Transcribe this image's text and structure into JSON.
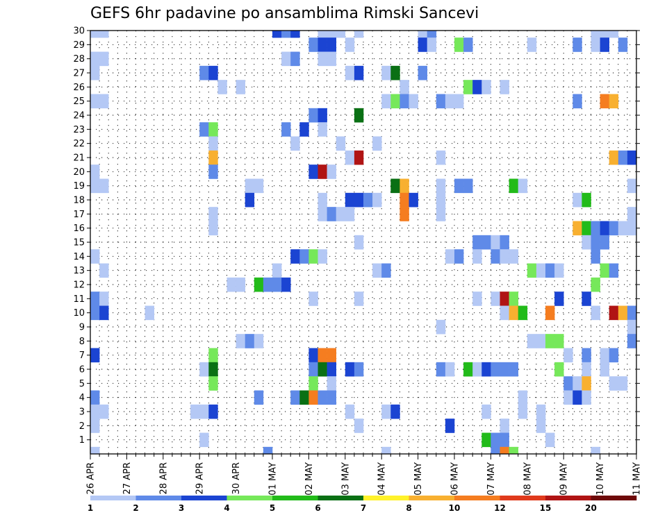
{
  "chart_data": {
    "type": "heatmap",
    "title": "GEFS 6hr padavine po ansamblima Rimski Sancevi",
    "y_ticks": [
      "1",
      "2",
      "3",
      "4",
      "5",
      "6",
      "7",
      "8",
      "9",
      "10",
      "11",
      "12",
      "13",
      "14",
      "15",
      "16",
      "17",
      "18",
      "19",
      "20",
      "21",
      "22",
      "23",
      "24",
      "25",
      "26",
      "27",
      "28",
      "29",
      "30"
    ],
    "ylim": [
      0,
      30
    ],
    "x_ticks": [
      "26 APR",
      "27 APR",
      "28 APR",
      "29 APR",
      "30 APR",
      "01 MAY",
      "02 MAY",
      "03 MAY",
      "04 MAY",
      "05 MAY",
      "06 MAY",
      "07 MAY",
      "08 MAY",
      "09 MAY",
      "10 MAY",
      "11 MAY"
    ],
    "x_steps_per_day": 4,
    "x_total_steps": 60,
    "grid": true,
    "colorbar": {
      "labels": [
        "1",
        "2",
        "3",
        "4",
        "5",
        "6",
        "7",
        "8",
        "10",
        "12",
        "15",
        "20"
      ],
      "colors": [
        "#b4c8f5",
        "#5f8ae8",
        "#1b44d2",
        "#76e85a",
        "#22bb1a",
        "#0a7014",
        "#fff22a",
        "#f8b030",
        "#f57d20",
        "#e03a1c",
        "#b01414",
        "#6e0a0a"
      ]
    },
    "cells": [
      [
        1,
        30,
        1
      ],
      [
        2,
        30,
        1
      ],
      [
        21,
        30,
        3
      ],
      [
        22,
        30,
        2
      ],
      [
        23,
        30,
        3
      ],
      [
        26,
        30,
        1
      ],
      [
        27,
        30,
        1
      ],
      [
        28,
        30,
        1
      ],
      [
        30,
        30,
        1
      ],
      [
        37,
        30,
        1
      ],
      [
        38,
        30,
        2
      ],
      [
        56,
        30,
        1
      ],
      [
        57,
        30,
        1
      ],
      [
        58,
        30,
        1
      ],
      [
        25,
        29,
        2
      ],
      [
        26,
        29,
        3
      ],
      [
        27,
        29,
        3
      ],
      [
        29,
        29,
        1
      ],
      [
        37,
        29,
        3
      ],
      [
        38,
        29,
        1
      ],
      [
        41,
        29,
        4
      ],
      [
        42,
        29,
        2
      ],
      [
        49,
        29,
        1
      ],
      [
        54,
        29,
        2
      ],
      [
        56,
        29,
        1
      ],
      [
        57,
        29,
        3
      ],
      [
        59,
        29,
        2
      ],
      [
        1,
        28,
        1
      ],
      [
        2,
        28,
        1
      ],
      [
        22,
        28,
        1
      ],
      [
        23,
        28,
        2
      ],
      [
        26,
        28,
        1
      ],
      [
        27,
        28,
        1
      ],
      [
        1,
        27,
        1
      ],
      [
        13,
        27,
        2
      ],
      [
        14,
        27,
        3
      ],
      [
        29,
        27,
        1
      ],
      [
        30,
        27,
        3
      ],
      [
        33,
        27,
        1
      ],
      [
        34,
        27,
        6
      ],
      [
        37,
        27,
        2
      ],
      [
        15,
        26,
        1
      ],
      [
        17,
        26,
        1
      ],
      [
        35,
        26,
        1
      ],
      [
        42,
        26,
        4
      ],
      [
        43,
        26,
        3
      ],
      [
        44,
        26,
        1
      ],
      [
        46,
        26,
        1
      ],
      [
        1,
        25,
        1
      ],
      [
        2,
        25,
        1
      ],
      [
        33,
        25,
        1
      ],
      [
        34,
        25,
        4
      ],
      [
        35,
        25,
        2
      ],
      [
        36,
        25,
        1
      ],
      [
        39,
        25,
        2
      ],
      [
        40,
        25,
        1
      ],
      [
        41,
        25,
        1
      ],
      [
        54,
        25,
        2
      ],
      [
        57,
        25,
        9
      ],
      [
        58,
        25,
        8
      ],
      [
        25,
        24,
        2
      ],
      [
        26,
        24,
        3
      ],
      [
        30,
        24,
        6
      ],
      [
        13,
        23,
        2
      ],
      [
        14,
        23,
        4
      ],
      [
        22,
        23,
        2
      ],
      [
        24,
        23,
        3
      ],
      [
        26,
        23,
        1
      ],
      [
        14,
        22,
        1
      ],
      [
        23,
        22,
        1
      ],
      [
        28,
        22,
        1
      ],
      [
        32,
        22,
        1
      ],
      [
        14,
        21,
        8
      ],
      [
        29,
        21,
        1
      ],
      [
        30,
        21,
        11
      ],
      [
        39,
        21,
        1
      ],
      [
        58,
        21,
        8
      ],
      [
        59,
        21,
        2
      ],
      [
        60,
        21,
        3
      ],
      [
        1,
        20,
        1
      ],
      [
        14,
        20,
        2
      ],
      [
        25,
        20,
        3
      ],
      [
        26,
        20,
        11
      ],
      [
        27,
        20,
        1
      ],
      [
        1,
        19,
        1
      ],
      [
        2,
        19,
        1
      ],
      [
        18,
        19,
        1
      ],
      [
        19,
        19,
        1
      ],
      [
        34,
        19,
        6
      ],
      [
        35,
        19,
        8
      ],
      [
        39,
        19,
        1
      ],
      [
        41,
        19,
        2
      ],
      [
        42,
        19,
        2
      ],
      [
        47,
        19,
        5
      ],
      [
        48,
        19,
        1
      ],
      [
        60,
        19,
        1
      ],
      [
        18,
        18,
        3
      ],
      [
        26,
        18,
        1
      ],
      [
        29,
        18,
        3
      ],
      [
        30,
        18,
        3
      ],
      [
        31,
        18,
        2
      ],
      [
        32,
        18,
        1
      ],
      [
        35,
        18,
        9
      ],
      [
        36,
        18,
        3
      ],
      [
        39,
        18,
        1
      ],
      [
        54,
        18,
        1
      ],
      [
        55,
        18,
        5
      ],
      [
        14,
        17,
        1
      ],
      [
        26,
        17,
        1
      ],
      [
        27,
        17,
        2
      ],
      [
        28,
        17,
        1
      ],
      [
        29,
        17,
        1
      ],
      [
        35,
        17,
        9
      ],
      [
        39,
        17,
        1
      ],
      [
        60,
        17,
        1
      ],
      [
        14,
        16,
        1
      ],
      [
        54,
        16,
        8
      ],
      [
        55,
        16,
        5
      ],
      [
        56,
        16,
        2
      ],
      [
        57,
        16,
        3
      ],
      [
        58,
        16,
        2
      ],
      [
        59,
        16,
        1
      ],
      [
        60,
        16,
        1
      ],
      [
        30,
        15,
        1
      ],
      [
        43,
        15,
        2
      ],
      [
        44,
        15,
        2
      ],
      [
        45,
        15,
        1
      ],
      [
        46,
        15,
        2
      ],
      [
        55,
        15,
        1
      ],
      [
        56,
        15,
        2
      ],
      [
        57,
        15,
        2
      ],
      [
        1,
        14,
        1
      ],
      [
        23,
        14,
        3
      ],
      [
        24,
        14,
        2
      ],
      [
        25,
        14,
        4
      ],
      [
        26,
        14,
        1
      ],
      [
        40,
        14,
        1
      ],
      [
        41,
        14,
        2
      ],
      [
        43,
        14,
        1
      ],
      [
        45,
        14,
        2
      ],
      [
        46,
        14,
        1
      ],
      [
        47,
        14,
        1
      ],
      [
        56,
        14,
        2
      ],
      [
        2,
        13,
        1
      ],
      [
        21,
        13,
        1
      ],
      [
        32,
        13,
        1
      ],
      [
        33,
        13,
        2
      ],
      [
        49,
        13,
        4
      ],
      [
        50,
        13,
        1
      ],
      [
        51,
        13,
        2
      ],
      [
        52,
        13,
        1
      ],
      [
        57,
        13,
        4
      ],
      [
        58,
        13,
        2
      ],
      [
        16,
        12,
        1
      ],
      [
        17,
        12,
        1
      ],
      [
        19,
        12,
        5
      ],
      [
        20,
        12,
        2
      ],
      [
        21,
        12,
        2
      ],
      [
        22,
        12,
        3
      ],
      [
        56,
        12,
        4
      ],
      [
        1,
        11,
        2
      ],
      [
        2,
        11,
        1
      ],
      [
        25,
        11,
        1
      ],
      [
        30,
        11,
        1
      ],
      [
        43,
        11,
        1
      ],
      [
        45,
        11,
        1
      ],
      [
        46,
        11,
        11
      ],
      [
        47,
        11,
        4
      ],
      [
        52,
        11,
        3
      ],
      [
        55,
        11,
        3
      ],
      [
        1,
        10,
        2
      ],
      [
        2,
        10,
        3
      ],
      [
        7,
        10,
        1
      ],
      [
        46,
        10,
        1
      ],
      [
        47,
        10,
        8
      ],
      [
        48,
        10,
        5
      ],
      [
        51,
        10,
        9
      ],
      [
        56,
        10,
        1
      ],
      [
        58,
        10,
        11
      ],
      [
        59,
        10,
        8
      ],
      [
        60,
        10,
        2
      ],
      [
        39,
        9,
        1
      ],
      [
        60,
        9,
        1
      ],
      [
        17,
        8,
        1
      ],
      [
        18,
        8,
        2
      ],
      [
        19,
        8,
        1
      ],
      [
        49,
        8,
        1
      ],
      [
        50,
        8,
        1
      ],
      [
        51,
        8,
        4
      ],
      [
        52,
        8,
        4
      ],
      [
        60,
        8,
        2
      ],
      [
        1,
        7,
        3
      ],
      [
        14,
        7,
        4
      ],
      [
        25,
        7,
        3
      ],
      [
        26,
        7,
        9
      ],
      [
        27,
        7,
        9
      ],
      [
        53,
        7,
        1
      ],
      [
        55,
        7,
        2
      ],
      [
        57,
        7,
        1
      ],
      [
        58,
        7,
        2
      ],
      [
        13,
        6,
        1
      ],
      [
        14,
        6,
        6
      ],
      [
        25,
        6,
        2
      ],
      [
        26,
        6,
        6
      ],
      [
        27,
        6,
        3
      ],
      [
        29,
        6,
        3
      ],
      [
        30,
        6,
        2
      ],
      [
        39,
        6,
        2
      ],
      [
        40,
        6,
        1
      ],
      [
        42,
        6,
        5
      ],
      [
        43,
        6,
        1
      ],
      [
        44,
        6,
        3
      ],
      [
        45,
        6,
        2
      ],
      [
        46,
        6,
        2
      ],
      [
        47,
        6,
        2
      ],
      [
        52,
        6,
        4
      ],
      [
        55,
        6,
        1
      ],
      [
        57,
        6,
        1
      ],
      [
        14,
        5,
        4
      ],
      [
        25,
        5,
        4
      ],
      [
        27,
        5,
        1
      ],
      [
        53,
        5,
        2
      ],
      [
        54,
        5,
        1
      ],
      [
        55,
        5,
        8
      ],
      [
        58,
        5,
        1
      ],
      [
        59,
        5,
        1
      ],
      [
        1,
        4,
        2
      ],
      [
        19,
        4,
        2
      ],
      [
        23,
        4,
        2
      ],
      [
        24,
        4,
        6
      ],
      [
        25,
        4,
        9
      ],
      [
        26,
        4,
        2
      ],
      [
        27,
        4,
        2
      ],
      [
        48,
        4,
        1
      ],
      [
        53,
        4,
        1
      ],
      [
        54,
        4,
        3
      ],
      [
        55,
        4,
        1
      ],
      [
        1,
        3,
        1
      ],
      [
        2,
        3,
        1
      ],
      [
        12,
        3,
        1
      ],
      [
        13,
        3,
        1
      ],
      [
        14,
        3,
        3
      ],
      [
        29,
        3,
        1
      ],
      [
        33,
        3,
        1
      ],
      [
        34,
        3,
        3
      ],
      [
        44,
        3,
        1
      ],
      [
        48,
        3,
        1
      ],
      [
        50,
        3,
        1
      ],
      [
        1,
        2,
        1
      ],
      [
        30,
        2,
        1
      ],
      [
        40,
        2,
        3
      ],
      [
        46,
        2,
        1
      ],
      [
        50,
        2,
        1
      ],
      [
        13,
        1,
        1
      ],
      [
        44,
        1,
        5
      ],
      [
        45,
        1,
        2
      ],
      [
        46,
        1,
        2
      ],
      [
        51,
        1,
        1
      ],
      [
        1,
        0,
        1
      ],
      [
        20,
        0,
        2
      ],
      [
        33,
        0,
        1
      ],
      [
        45,
        0,
        2
      ],
      [
        46,
        0,
        9
      ],
      [
        47,
        0,
        4
      ],
      [
        56,
        0,
        1
      ]
    ]
  }
}
